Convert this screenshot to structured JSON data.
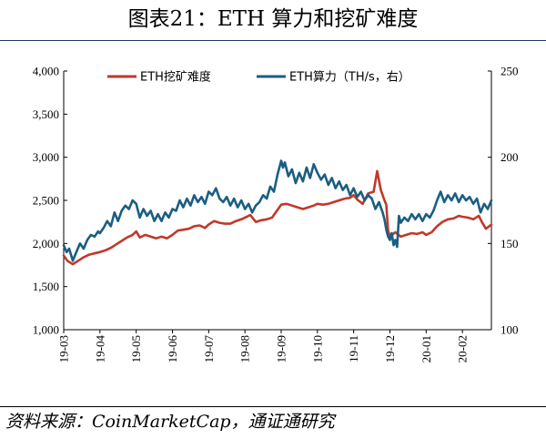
{
  "title": "图表21：ETH 算力和挖矿难度",
  "source": "资料来源：CoinMarketCap，通证通研究",
  "colors": {
    "difficulty": "#c0392b",
    "hashrate": "#1b5e82",
    "title_rule": "#1f3864"
  },
  "chart_data": {
    "type": "line",
    "x_tick_labels": [
      "19-03",
      "19-04",
      "19-05",
      "19-06",
      "19-07",
      "19-08",
      "19-09",
      "19-10",
      "19-11",
      "19-12",
      "20-01",
      "20-02"
    ],
    "x_range": [
      0,
      11.8
    ],
    "y_left": {
      "range": [
        1000,
        4000
      ],
      "ticks": [
        "1,000",
        "1,500",
        "2,000",
        "2,500",
        "3,000",
        "3,500",
        "4,000"
      ]
    },
    "y_right": {
      "range": [
        100,
        250
      ],
      "ticks": [
        "100",
        "150",
        "200",
        "250"
      ]
    },
    "grid": false,
    "legend": "top",
    "series": [
      {
        "name": "ETH挖矿难度",
        "axis": "left",
        "points": [
          [
            0.0,
            1860
          ],
          [
            0.1,
            1800
          ],
          [
            0.25,
            1760
          ],
          [
            0.4,
            1800
          ],
          [
            0.55,
            1840
          ],
          [
            0.7,
            1870
          ],
          [
            0.9,
            1890
          ],
          [
            1.0,
            1900
          ],
          [
            1.15,
            1920
          ],
          [
            1.3,
            1950
          ],
          [
            1.45,
            1990
          ],
          [
            1.6,
            2030
          ],
          [
            1.75,
            2070
          ],
          [
            1.9,
            2100
          ],
          [
            2.0,
            2140
          ],
          [
            2.1,
            2070
          ],
          [
            2.25,
            2100
          ],
          [
            2.4,
            2080
          ],
          [
            2.55,
            2060
          ],
          [
            2.7,
            2080
          ],
          [
            2.85,
            2060
          ],
          [
            3.0,
            2100
          ],
          [
            3.15,
            2150
          ],
          [
            3.3,
            2160
          ],
          [
            3.45,
            2170
          ],
          [
            3.6,
            2200
          ],
          [
            3.75,
            2210
          ],
          [
            3.9,
            2180
          ],
          [
            4.0,
            2220
          ],
          [
            4.15,
            2260
          ],
          [
            4.3,
            2240
          ],
          [
            4.45,
            2230
          ],
          [
            4.6,
            2230
          ],
          [
            4.75,
            2260
          ],
          [
            4.9,
            2280
          ],
          [
            5.0,
            2300
          ],
          [
            5.15,
            2330
          ],
          [
            5.3,
            2250
          ],
          [
            5.45,
            2270
          ],
          [
            5.6,
            2280
          ],
          [
            5.75,
            2300
          ],
          [
            5.9,
            2390
          ],
          [
            6.0,
            2450
          ],
          [
            6.15,
            2460
          ],
          [
            6.3,
            2440
          ],
          [
            6.45,
            2420
          ],
          [
            6.6,
            2400
          ],
          [
            6.75,
            2420
          ],
          [
            6.9,
            2440
          ],
          [
            7.0,
            2460
          ],
          [
            7.15,
            2450
          ],
          [
            7.3,
            2460
          ],
          [
            7.45,
            2480
          ],
          [
            7.6,
            2500
          ],
          [
            7.75,
            2520
          ],
          [
            7.9,
            2530
          ],
          [
            8.0,
            2560
          ],
          [
            8.1,
            2510
          ],
          [
            8.25,
            2460
          ],
          [
            8.4,
            2580
          ],
          [
            8.55,
            2600
          ],
          [
            8.65,
            2840
          ],
          [
            8.75,
            2620
          ],
          [
            8.85,
            2500
          ],
          [
            8.9,
            2450
          ],
          [
            8.95,
            2150
          ],
          [
            9.0,
            2080
          ],
          [
            9.15,
            2130
          ],
          [
            9.3,
            2080
          ],
          [
            9.45,
            2100
          ],
          [
            9.6,
            2120
          ],
          [
            9.75,
            2110
          ],
          [
            9.9,
            2130
          ],
          [
            10.0,
            2100
          ],
          [
            10.15,
            2130
          ],
          [
            10.3,
            2200
          ],
          [
            10.45,
            2250
          ],
          [
            10.6,
            2280
          ],
          [
            10.75,
            2290
          ],
          [
            10.9,
            2320
          ],
          [
            11.0,
            2310
          ],
          [
            11.15,
            2300
          ],
          [
            11.3,
            2280
          ],
          [
            11.45,
            2320
          ],
          [
            11.55,
            2240
          ],
          [
            11.65,
            2170
          ],
          [
            11.8,
            2220
          ]
        ]
      },
      {
        "name": "ETH算力（TH/s，右）",
        "axis": "right",
        "points": [
          [
            0.0,
            149
          ],
          [
            0.08,
            145
          ],
          [
            0.15,
            147
          ],
          [
            0.25,
            140
          ],
          [
            0.35,
            145
          ],
          [
            0.45,
            150
          ],
          [
            0.55,
            147
          ],
          [
            0.65,
            152
          ],
          [
            0.75,
            155
          ],
          [
            0.85,
            154
          ],
          [
            0.95,
            157
          ],
          [
            1.0,
            156
          ],
          [
            1.1,
            159
          ],
          [
            1.2,
            163
          ],
          [
            1.3,
            160
          ],
          [
            1.4,
            168
          ],
          [
            1.5,
            163
          ],
          [
            1.6,
            169
          ],
          [
            1.7,
            172
          ],
          [
            1.8,
            170
          ],
          [
            1.9,
            175
          ],
          [
            2.0,
            173
          ],
          [
            2.1,
            165
          ],
          [
            2.2,
            170
          ],
          [
            2.3,
            166
          ],
          [
            2.4,
            169
          ],
          [
            2.5,
            163
          ],
          [
            2.6,
            167
          ],
          [
            2.7,
            163
          ],
          [
            2.8,
            168
          ],
          [
            2.9,
            165
          ],
          [
            3.0,
            170
          ],
          [
            3.1,
            169
          ],
          [
            3.2,
            175
          ],
          [
            3.3,
            171
          ],
          [
            3.4,
            176
          ],
          [
            3.5,
            172
          ],
          [
            3.6,
            178
          ],
          [
            3.7,
            174
          ],
          [
            3.8,
            177
          ],
          [
            3.9,
            173
          ],
          [
            4.0,
            180
          ],
          [
            4.1,
            178
          ],
          [
            4.2,
            182
          ],
          [
            4.3,
            176
          ],
          [
            4.4,
            174
          ],
          [
            4.5,
            177
          ],
          [
            4.6,
            172
          ],
          [
            4.7,
            176
          ],
          [
            4.8,
            171
          ],
          [
            4.9,
            175
          ],
          [
            5.0,
            170
          ],
          [
            5.1,
            173
          ],
          [
            5.2,
            168
          ],
          [
            5.3,
            172
          ],
          [
            5.4,
            174
          ],
          [
            5.5,
            178
          ],
          [
            5.6,
            176
          ],
          [
            5.7,
            183
          ],
          [
            5.8,
            180
          ],
          [
            5.9,
            190
          ],
          [
            6.0,
            198
          ],
          [
            6.05,
            194
          ],
          [
            6.1,
            197
          ],
          [
            6.2,
            189
          ],
          [
            6.3,
            193
          ],
          [
            6.4,
            185
          ],
          [
            6.5,
            191
          ],
          [
            6.6,
            186
          ],
          [
            6.7,
            194
          ],
          [
            6.8,
            188
          ],
          [
            6.9,
            196
          ],
          [
            7.0,
            191
          ],
          [
            7.1,
            187
          ],
          [
            7.2,
            190
          ],
          [
            7.3,
            184
          ],
          [
            7.4,
            188
          ],
          [
            7.5,
            182
          ],
          [
            7.6,
            186
          ],
          [
            7.7,
            181
          ],
          [
            7.8,
            184
          ],
          [
            7.9,
            178
          ],
          [
            8.0,
            182
          ],
          [
            8.1,
            177
          ],
          [
            8.2,
            180
          ],
          [
            8.3,
            175
          ],
          [
            8.4,
            178
          ],
          [
            8.5,
            176
          ],
          [
            8.6,
            170
          ],
          [
            8.7,
            174
          ],
          [
            8.8,
            168
          ],
          [
            8.85,
            164
          ],
          [
            8.9,
            158
          ],
          [
            8.95,
            154
          ],
          [
            9.0,
            152
          ],
          [
            9.05,
            156
          ],
          [
            9.1,
            149
          ],
          [
            9.15,
            152
          ],
          [
            9.2,
            148
          ],
          [
            9.25,
            166
          ],
          [
            9.3,
            162
          ],
          [
            9.4,
            165
          ],
          [
            9.5,
            163
          ],
          [
            9.6,
            167
          ],
          [
            9.7,
            164
          ],
          [
            9.8,
            167
          ],
          [
            9.9,
            163
          ],
          [
            10.0,
            167
          ],
          [
            10.1,
            165
          ],
          [
            10.2,
            169
          ],
          [
            10.3,
            175
          ],
          [
            10.4,
            180
          ],
          [
            10.5,
            174
          ],
          [
            10.6,
            178
          ],
          [
            10.7,
            175
          ],
          [
            10.8,
            179
          ],
          [
            10.9,
            174
          ],
          [
            11.0,
            178
          ],
          [
            11.1,
            175
          ],
          [
            11.2,
            177
          ],
          [
            11.3,
            173
          ],
          [
            11.4,
            176
          ],
          [
            11.5,
            168
          ],
          [
            11.6,
            173
          ],
          [
            11.7,
            170
          ],
          [
            11.8,
            175
          ]
        ]
      }
    ]
  }
}
